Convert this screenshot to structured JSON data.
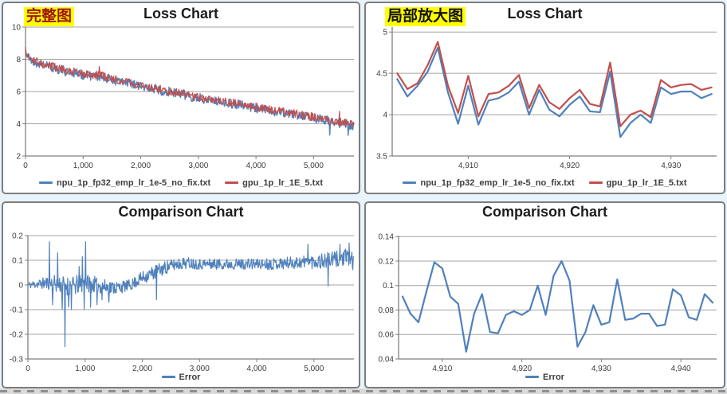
{
  "page": {
    "background": "#e8f3fb",
    "panel_border": "#7d7d7d",
    "grid_color": "#a3a3a3",
    "axis_color": "#7f7f7f",
    "tick_label_color": "#3c3c3c",
    "accent_blue": "#4F81BD",
    "accent_red": "#C0504D",
    "highlight_yellow": "#ffff00"
  },
  "chart_data": [
    {
      "id": "loss-full",
      "type": "line",
      "title": "Loss Chart",
      "annotation": "完整图",
      "x_range": [
        0,
        5700
      ],
      "y_range": [
        2,
        10
      ],
      "x_ticks": [
        {
          "v": 0,
          "label": "0"
        },
        {
          "v": 1000,
          "label": "1,000"
        },
        {
          "v": 2000,
          "label": "2,000"
        },
        {
          "v": 3000,
          "label": "3,000"
        },
        {
          "v": 4000,
          "label": "4,000"
        },
        {
          "v": 5000,
          "label": "5,000"
        }
      ],
      "y_ticks": [
        {
          "v": 10,
          "label": "10"
        },
        {
          "v": 8,
          "label": "8"
        },
        {
          "v": 6,
          "label": "6"
        },
        {
          "v": 4,
          "label": "4"
        },
        {
          "v": 2,
          "label": "2"
        }
      ],
      "grid": "horizontal",
      "legend_position": "bottom",
      "step": 10,
      "trend": {
        "x": [
          0,
          30,
          80,
          150,
          300,
          500,
          700,
          900,
          1100,
          1300,
          1500,
          1800,
          2100,
          2400,
          2700,
          3000,
          3300,
          3600,
          3900,
          4200,
          4500,
          4800,
          5100,
          5400,
          5700
        ],
        "y": [
          8.65,
          8.25,
          8.05,
          7.9,
          7.72,
          7.52,
          7.32,
          7.18,
          7.05,
          7.0,
          6.78,
          6.55,
          6.3,
          6.1,
          5.9,
          5.65,
          5.5,
          5.3,
          5.1,
          4.9,
          4.72,
          4.55,
          4.35,
          4.15,
          3.92
        ]
      },
      "series": [
        {
          "name": "npu_1p_fp32_emp_lr_1e-5_no_fix.txt",
          "color": "#4F81BD",
          "offset": -0.06,
          "noise": 0.3,
          "seed": 21,
          "lw": 1.4,
          "spikes": [
            [
              5280,
              3.3
            ],
            [
              5600,
              3.28
            ]
          ]
        },
        {
          "name": "gpu_1p_lr_1E_5.txt",
          "color": "#C0504D",
          "offset": 0,
          "noise": 0.26,
          "seed": 57,
          "lw": 1.2,
          "spikes": [
            [
              1280,
              7.55
            ],
            [
              5450,
              4.78
            ]
          ]
        }
      ]
    },
    {
      "id": "loss-zoom",
      "type": "line",
      "title": "Loss Chart",
      "annotation": "局部放大图",
      "x_range": [
        4902.5,
        4934.5
      ],
      "y_range": [
        3.5,
        5.06
      ],
      "x_ticks": [
        {
          "v": 4910,
          "label": "4,910"
        },
        {
          "v": 4920,
          "label": "4,920"
        },
        {
          "v": 4930,
          "label": "4,930"
        }
      ],
      "y_ticks": [
        {
          "v": 5,
          "label": "5"
        },
        {
          "v": 4.5,
          "label": "4.5"
        },
        {
          "v": 4,
          "label": "4"
        },
        {
          "v": 3.5,
          "label": "3.5"
        }
      ],
      "grid": "horizontal",
      "legend_position": "bottom",
      "x_start": 4903,
      "x_step": 1,
      "series": [
        {
          "name": "npu_1p_fp32_emp_lr_1e-5_no_fix.txt",
          "color": "#4F81BD",
          "lw": 2.2,
          "y": [
            4.43,
            4.22,
            4.35,
            4.52,
            4.81,
            4.27,
            3.89,
            4.35,
            3.88,
            4.17,
            4.2,
            4.27,
            4.4,
            4.0,
            4.3,
            4.06,
            3.98,
            4.12,
            4.22,
            4.04,
            4.03,
            4.52,
            3.73,
            3.9,
            4.0,
            3.9,
            4.33,
            4.25,
            4.28,
            4.28,
            4.2,
            4.25
          ]
        },
        {
          "name": "gpu_1p_lr_1E_5.txt",
          "color": "#C0504D",
          "lw": 2.2,
          "y": [
            4.5,
            4.31,
            4.38,
            4.6,
            4.88,
            4.35,
            4.02,
            4.47,
            3.98,
            4.25,
            4.27,
            4.35,
            4.48,
            4.08,
            4.36,
            4.15,
            4.07,
            4.2,
            4.3,
            4.13,
            4.1,
            4.63,
            3.86,
            4.0,
            4.05,
            3.97,
            4.42,
            4.33,
            4.36,
            4.37,
            4.3,
            4.33
          ]
        }
      ]
    },
    {
      "id": "comparison-full",
      "type": "line",
      "title": "Comparison Chart",
      "annotation": null,
      "x_range": [
        0,
        5700
      ],
      "y_range": [
        -0.3,
        0.2
      ],
      "x_ticks": [
        {
          "v": 0,
          "label": "0"
        },
        {
          "v": 1000,
          "label": "1,000"
        },
        {
          "v": 2000,
          "label": "2,000"
        },
        {
          "v": 3000,
          "label": "3,000"
        },
        {
          "v": 4000,
          "label": "4,000"
        },
        {
          "v": 5000,
          "label": "5,000"
        }
      ],
      "y_ticks": [
        {
          "v": 0.2,
          "label": "0.2"
        },
        {
          "v": 0.1,
          "label": "0.1"
        },
        {
          "v": 0,
          "label": "0"
        },
        {
          "v": -0.1,
          "label": "-0.1"
        },
        {
          "v": -0.2,
          "label": "-0.2"
        },
        {
          "v": -0.3,
          "label": "-0.3"
        }
      ],
      "grid": "horizontal",
      "legend_position": "bottom",
      "step": 8,
      "trend": {
        "x": [
          0,
          200,
          400,
          600,
          800,
          1000,
          1200,
          1400,
          1600,
          1800,
          2000,
          2200,
          2400,
          2600,
          2800,
          3000,
          3400,
          3800,
          4200,
          4600,
          5000,
          5300,
          5500,
          5700
        ],
        "y": [
          0.0,
          0.005,
          0.01,
          0.0,
          -0.005,
          0.01,
          0.0,
          -0.01,
          -0.01,
          0.0,
          0.03,
          0.05,
          0.07,
          0.085,
          0.09,
          0.085,
          0.085,
          0.085,
          0.085,
          0.09,
          0.095,
          0.1,
          0.11,
          0.1
        ]
      },
      "noise_profile": {
        "x": [
          0,
          300,
          500,
          700,
          900,
          1100,
          1400,
          1800,
          2200,
          2600,
          3000,
          4000,
          4600,
          5000,
          5400,
          5700
        ],
        "amp": [
          0.013,
          0.025,
          0.035,
          0.04,
          0.04,
          0.035,
          0.03,
          0.022,
          0.03,
          0.025,
          0.022,
          0.022,
          0.025,
          0.03,
          0.035,
          0.04
        ]
      },
      "series": [
        {
          "name": "Error",
          "color": "#4F81BD",
          "offset": 0,
          "seed": 11,
          "lw": 1.2,
          "spikes": [
            [
              380,
              0.175
            ],
            [
              430,
              -0.08
            ],
            [
              520,
              0.13
            ],
            [
              600,
              -0.1
            ],
            [
              650,
              -0.25
            ],
            [
              710,
              -0.09
            ],
            [
              760,
              -0.1
            ],
            [
              900,
              0.075
            ],
            [
              950,
              0.115
            ],
            [
              985,
              -0.1
            ],
            [
              1010,
              0.175
            ],
            [
              1100,
              -0.09
            ],
            [
              1205,
              -0.08
            ],
            [
              1300,
              -0.06
            ],
            [
              1420,
              -0.07
            ],
            [
              2250,
              -0.06
            ],
            [
              4900,
              0.165
            ],
            [
              5250,
              -0.005
            ],
            [
              5460,
              0.165
            ],
            [
              5620,
              0.17
            ]
          ]
        }
      ]
    },
    {
      "id": "comparison-zoom",
      "type": "line",
      "title": "Comparison Chart",
      "annotation": null,
      "x_range": [
        4904.5,
        4944.5
      ],
      "y_range": [
        0.04,
        0.1408
      ],
      "x_ticks": [
        {
          "v": 4910,
          "label": "4,910"
        },
        {
          "v": 4920,
          "label": "4,920"
        },
        {
          "v": 4930,
          "label": "4,930"
        },
        {
          "v": 4940,
          "label": "4,940"
        }
      ],
      "y_ticks": [
        {
          "v": 0.14,
          "label": "0.14"
        },
        {
          "v": 0.12,
          "label": "0.12"
        },
        {
          "v": 0.1,
          "label": "0.1"
        },
        {
          "v": 0.08,
          "label": "0.08"
        },
        {
          "v": 0.06,
          "label": "0.06"
        },
        {
          "v": 0.04,
          "label": "0.04"
        }
      ],
      "grid": "horizontal",
      "legend_position": "bottom",
      "x_start": 4905,
      "x_step": 1,
      "series": [
        {
          "name": "Error",
          "color": "#4F81BD",
          "lw": 2.2,
          "y": [
            0.091,
            0.077,
            0.07,
            0.095,
            0.119,
            0.114,
            0.091,
            0.085,
            0.046,
            0.077,
            0.093,
            0.062,
            0.061,
            0.076,
            0.079,
            0.076,
            0.08,
            0.1,
            0.076,
            0.108,
            0.12,
            0.104,
            0.05,
            0.062,
            0.084,
            0.068,
            0.07,
            0.105,
            0.072,
            0.073,
            0.077,
            0.077,
            0.067,
            0.068,
            0.097,
            0.092,
            0.074,
            0.072,
            0.093,
            0.086
          ]
        }
      ]
    }
  ]
}
